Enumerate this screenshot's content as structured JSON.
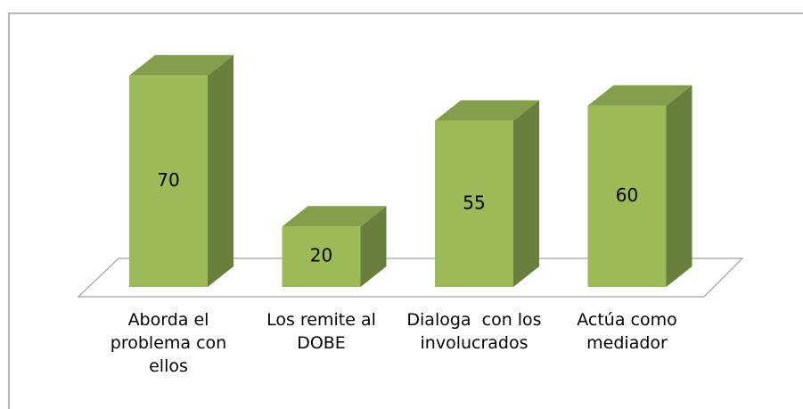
{
  "chart_data": {
    "type": "bar3d",
    "categories": [
      "Aborda el problema con ellos",
      "Los remite al DOBE",
      "Dialoga  con los involucrados",
      "Actúa como mediador"
    ],
    "values": [
      70,
      20,
      55,
      60
    ],
    "color": "#9bbb59"
  }
}
